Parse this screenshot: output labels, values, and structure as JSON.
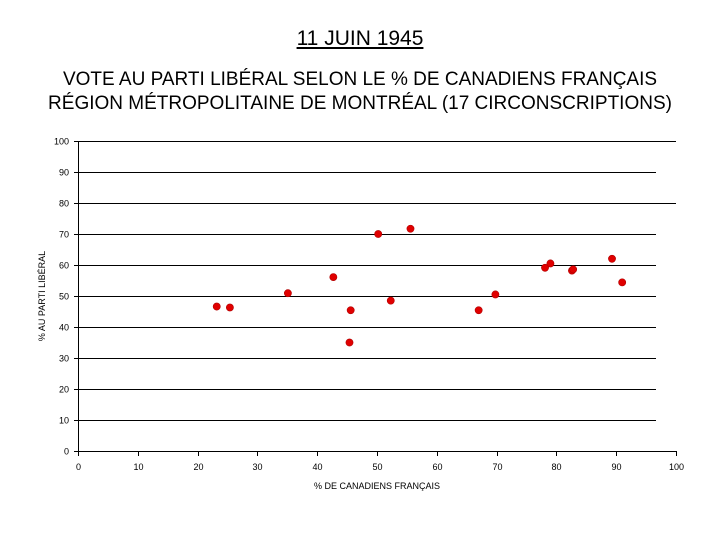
{
  "page": {
    "title": "11 JUIN 1945",
    "subtitle_line1": "VOTE AU PARTI LIBÉRAL SELON LE % DE CANADIENS FRANÇAIS",
    "subtitle_line2": "RÉGION MÉTROPOLITAINE DE MONTRÉAL (17 CIRCONSCRIPTIONS)"
  },
  "chart_data": {
    "type": "scatter",
    "title": "11 JUIN 1945",
    "subtitle": "VOTE AU PARTI LIBÉRAL SELON LE % DE CANADIENS FRANÇAIS RÉGION MÉTROPOLITAINE DE MONTRÉAL (17 CIRCONSCRIPTIONS)",
    "xlabel": "% DE CANADIENS FRANÇAIS",
    "ylabel": "% AU PARTI LIBÉRAL",
    "xlim": [
      0,
      100
    ],
    "ylim": [
      0,
      100
    ],
    "xticks": [
      0,
      10,
      20,
      30,
      40,
      50,
      60,
      70,
      80,
      90,
      100
    ],
    "yticks": [
      0,
      10,
      20,
      30,
      40,
      50,
      60,
      70,
      80,
      90,
      100
    ],
    "grid": "horizontal",
    "marker_color": "#e00000",
    "points": [
      {
        "x": 23.2,
        "y": 46.6
      },
      {
        "x": 25.4,
        "y": 46.3
      },
      {
        "x": 35.1,
        "y": 50.9
      },
      {
        "x": 42.7,
        "y": 56.1
      },
      {
        "x": 45.4,
        "y": 35.0
      },
      {
        "x": 45.6,
        "y": 45.4
      },
      {
        "x": 50.2,
        "y": 70.0
      },
      {
        "x": 52.3,
        "y": 48.5
      },
      {
        "x": 55.6,
        "y": 71.7
      },
      {
        "x": 67.0,
        "y": 45.4
      },
      {
        "x": 69.8,
        "y": 50.5
      },
      {
        "x": 78.1,
        "y": 59.1
      },
      {
        "x": 79.0,
        "y": 60.5
      },
      {
        "x": 82.6,
        "y": 58.2
      },
      {
        "x": 82.8,
        "y": 58.6
      },
      {
        "x": 89.3,
        "y": 62.0
      },
      {
        "x": 91.0,
        "y": 54.4
      }
    ]
  }
}
